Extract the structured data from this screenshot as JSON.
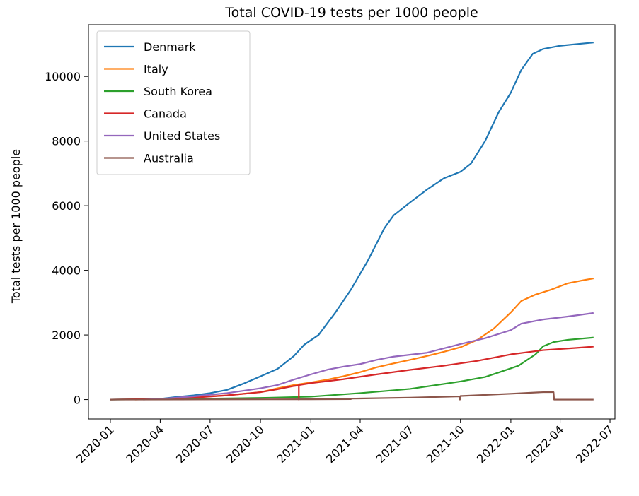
{
  "chart_data": {
    "type": "line",
    "title": "Total COVID-19 tests per 1000 people",
    "xlabel": "",
    "ylabel": "Total tests per 1000 people",
    "xlim": [
      "2019-11-22",
      "2022-07-10"
    ],
    "ylim": [
      -600,
      11600
    ],
    "x_ticks": [
      "2020-01",
      "2020-04",
      "2020-07",
      "2020-10",
      "2021-01",
      "2021-04",
      "2021-07",
      "2021-10",
      "2022-01",
      "2022-04",
      "2022-07"
    ],
    "y_ticks": [
      0,
      2000,
      4000,
      6000,
      8000,
      10000
    ],
    "grid": false,
    "legend_position": "top-left",
    "series": [
      {
        "name": "Denmark",
        "color": "#1f77b4",
        "points": [
          [
            "2020-01-01",
            0
          ],
          [
            "2020-03-01",
            10
          ],
          [
            "2020-04-01",
            20
          ],
          [
            "2020-05-01",
            80
          ],
          [
            "2020-06-01",
            130
          ],
          [
            "2020-07-01",
            200
          ],
          [
            "2020-08-01",
            300
          ],
          [
            "2020-09-01",
            500
          ],
          [
            "2020-10-01",
            720
          ],
          [
            "2020-11-01",
            950
          ],
          [
            "2020-12-01",
            1350
          ],
          [
            "2020-12-20",
            1700
          ],
          [
            "2021-01-15",
            2000
          ],
          [
            "2021-02-15",
            2700
          ],
          [
            "2021-03-15",
            3400
          ],
          [
            "2021-04-15",
            4300
          ],
          [
            "2021-05-15",
            5300
          ],
          [
            "2021-06-01",
            5700
          ],
          [
            "2021-07-01",
            6100
          ],
          [
            "2021-08-01",
            6500
          ],
          [
            "2021-09-01",
            6850
          ],
          [
            "2021-10-01",
            7050
          ],
          [
            "2021-10-20",
            7300
          ],
          [
            "2021-11-15",
            8000
          ],
          [
            "2021-12-10",
            8900
          ],
          [
            "2022-01-01",
            9500
          ],
          [
            "2022-01-20",
            10200
          ],
          [
            "2022-02-10",
            10700
          ],
          [
            "2022-03-01",
            10850
          ],
          [
            "2022-04-01",
            10950
          ],
          [
            "2022-05-01",
            11000
          ],
          [
            "2022-06-01",
            11050
          ]
        ]
      },
      {
        "name": "Italy",
        "color": "#ff7f0e",
        "points": [
          [
            "2020-02-15",
            0
          ],
          [
            "2020-04-01",
            20
          ],
          [
            "2020-06-01",
            70
          ],
          [
            "2020-08-01",
            130
          ],
          [
            "2020-10-01",
            230
          ],
          [
            "2020-11-01",
            350
          ],
          [
            "2020-12-01",
            450
          ],
          [
            "2021-01-01",
            530
          ],
          [
            "2021-02-01",
            620
          ],
          [
            "2021-03-01",
            720
          ],
          [
            "2021-04-01",
            850
          ],
          [
            "2021-05-01",
            1000
          ],
          [
            "2021-06-01",
            1120
          ],
          [
            "2021-07-01",
            1230
          ],
          [
            "2021-08-01",
            1350
          ],
          [
            "2021-09-01",
            1480
          ],
          [
            "2021-10-01",
            1620
          ],
          [
            "2021-11-01",
            1850
          ],
          [
            "2021-12-01",
            2200
          ],
          [
            "2022-01-01",
            2700
          ],
          [
            "2022-01-20",
            3050
          ],
          [
            "2022-02-15",
            3250
          ],
          [
            "2022-03-15",
            3400
          ],
          [
            "2022-04-15",
            3600
          ],
          [
            "2022-05-15",
            3700
          ],
          [
            "2022-06-01",
            3750
          ]
        ]
      },
      {
        "name": "South Korea",
        "color": "#2ca02c",
        "points": [
          [
            "2020-01-01",
            0
          ],
          [
            "2020-04-01",
            10
          ],
          [
            "2020-07-01",
            30
          ],
          [
            "2020-10-01",
            50
          ],
          [
            "2021-01-01",
            90
          ],
          [
            "2021-04-01",
            200
          ],
          [
            "2021-07-01",
            330
          ],
          [
            "2021-10-01",
            560
          ],
          [
            "2021-11-15",
            700
          ],
          [
            "2021-12-15",
            870
          ],
          [
            "2022-01-15",
            1050
          ],
          [
            "2022-02-15",
            1400
          ],
          [
            "2022-03-01",
            1650
          ],
          [
            "2022-03-20",
            1780
          ],
          [
            "2022-04-15",
            1850
          ],
          [
            "2022-06-01",
            1920
          ]
        ]
      },
      {
        "name": "Canada",
        "color": "#d62728",
        "points": [
          [
            "2020-01-01",
            0
          ],
          [
            "2020-04-01",
            20
          ],
          [
            "2020-06-01",
            60
          ],
          [
            "2020-08-01",
            130
          ],
          [
            "2020-10-01",
            230
          ],
          [
            "2020-11-01",
            320
          ],
          [
            "2020-12-01",
            420
          ],
          [
            "2020-12-10",
            440
          ],
          [
            "2020-12-10",
            0
          ],
          [
            "2020-12-10",
            450
          ],
          [
            "2021-01-01",
            510
          ],
          [
            "2021-03-01",
            630
          ],
          [
            "2021-05-01",
            780
          ],
          [
            "2021-07-01",
            920
          ],
          [
            "2021-09-01",
            1050
          ],
          [
            "2021-11-01",
            1200
          ],
          [
            "2022-01-01",
            1400
          ],
          [
            "2022-03-01",
            1530
          ],
          [
            "2022-05-01",
            1600
          ],
          [
            "2022-06-01",
            1640
          ]
        ]
      },
      {
        "name": "United States",
        "color": "#9467bd",
        "points": [
          [
            "2020-03-01",
            0
          ],
          [
            "2020-04-01",
            20
          ],
          [
            "2020-06-01",
            100
          ],
          [
            "2020-08-01",
            200
          ],
          [
            "2020-10-01",
            350
          ],
          [
            "2020-11-01",
            450
          ],
          [
            "2020-12-01",
            620
          ],
          [
            "2021-01-01",
            780
          ],
          [
            "2021-02-01",
            930
          ],
          [
            "2021-03-01",
            1020
          ],
          [
            "2021-04-01",
            1100
          ],
          [
            "2021-05-01",
            1230
          ],
          [
            "2021-06-01",
            1330
          ],
          [
            "2021-08-01",
            1450
          ],
          [
            "2021-10-01",
            1720
          ],
          [
            "2021-11-15",
            1900
          ],
          [
            "2022-01-01",
            2150
          ],
          [
            "2022-01-20",
            2350
          ],
          [
            "2022-03-01",
            2480
          ],
          [
            "2022-04-15",
            2570
          ],
          [
            "2022-06-01",
            2680
          ]
        ]
      },
      {
        "name": "Australia",
        "color": "#8c564b",
        "points": [
          [
            "2020-01-01",
            0
          ],
          [
            "2020-07-01",
            5
          ],
          [
            "2021-01-01",
            10
          ],
          [
            "2021-03-15",
            15
          ],
          [
            "2021-03-16",
            30
          ],
          [
            "2021-07-01",
            60
          ],
          [
            "2021-09-30",
            100
          ],
          [
            "2021-09-30",
            0
          ],
          [
            "2021-10-01",
            110
          ],
          [
            "2022-01-01",
            180
          ],
          [
            "2022-03-01",
            230
          ],
          [
            "2022-03-20",
            230
          ],
          [
            "2022-03-21",
            0
          ],
          [
            "2022-06-01",
            0
          ]
        ]
      }
    ]
  }
}
